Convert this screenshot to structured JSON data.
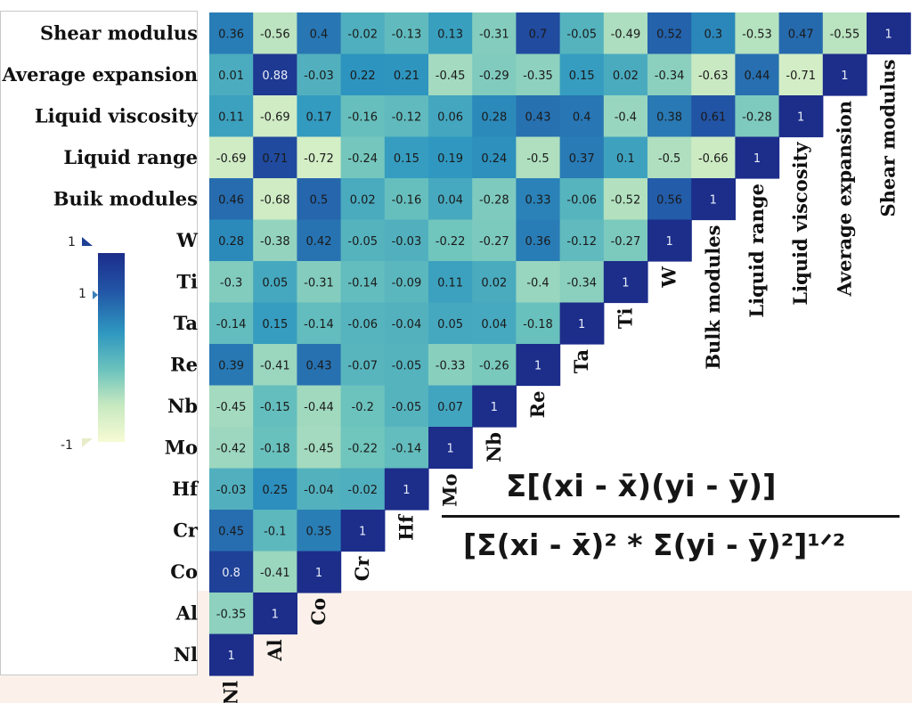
{
  "chart_data": {
    "type": "heatmap",
    "title": "",
    "row_labels": [
      "Shear modulus",
      "Average expansion",
      "Liquid viscosity",
      "Liquid range",
      "Buik modules",
      "W",
      "Ti",
      "Ta",
      "Re",
      "Nb",
      "Mo",
      "Hf",
      "Cr",
      "Co",
      "Al",
      "Nl"
    ],
    "column_labels": [
      "Nl",
      "Al",
      "Co",
      "Cr",
      "Hf",
      "Mo",
      "Nb",
      "Re",
      "Ta",
      "Ti",
      "W",
      "Bulk modules",
      "Liquid range",
      "Liquid viscosity",
      "Average expansion",
      "Shear modulus"
    ],
    "values": [
      [
        "0.36",
        "-0.56",
        "0.4",
        "-0.02",
        "-0.13",
        "0.13",
        "-0.31",
        "0.7",
        "-0.05",
        "-0.49",
        "0.52",
        "0.3",
        "-0.53",
        "0.47",
        "-0.55",
        "1"
      ],
      [
        "0.01",
        "0.88",
        "-0.03",
        "0.22",
        "0.21",
        "-0.45",
        "-0.29",
        "-0.35",
        "0.15",
        "0.02",
        "-0.34",
        "-0.63",
        "0.44",
        "-0.71",
        "1"
      ],
      [
        "0.11",
        "-0.69",
        "0.17",
        "-0.16",
        "-0.12",
        "0.06",
        "0.28",
        "0.43",
        "0.4",
        "-0.4",
        "0.38",
        "0.61",
        "-0.28",
        "1"
      ],
      [
        "-0.69",
        "0.71",
        "-0.72",
        "-0.24",
        "0.15",
        "0.19",
        "0.24",
        "-0.5",
        "0.37",
        "0.1",
        "-0.5",
        "-0.66",
        "1"
      ],
      [
        "0.46",
        "-0.68",
        "0.5",
        "0.02",
        "-0.16",
        "0.04",
        "-0.28",
        "0.33",
        "-0.06",
        "-0.52",
        "0.56",
        "1"
      ],
      [
        "0.28",
        "-0.38",
        "0.42",
        "-0.05",
        "-0.03",
        "-0.22",
        "-0.27",
        "0.36",
        "-0.12",
        "-0.27",
        "1"
      ],
      [
        "-0.3",
        "0.05",
        "-0.31",
        "-0.14",
        "-0.09",
        "0.11",
        "0.02",
        "-0.4",
        "-0.34",
        "1"
      ],
      [
        "-0.14",
        "0.15",
        "-0.14",
        "-0.06",
        "-0.04",
        "0.05",
        "0.04",
        "-0.18",
        "1"
      ],
      [
        "0.39",
        "-0.41",
        "0.43",
        "-0.07",
        "-0.05",
        "-0.33",
        "-0.26",
        "1"
      ],
      [
        "-0.45",
        "-0.15",
        "-0.44",
        "-0.2",
        "-0.05",
        "0.07",
        "1"
      ],
      [
        "-0.42",
        "-0.18",
        "-0.45",
        "-0.22",
        "-0.14",
        "1"
      ],
      [
        "-0.03",
        "0.25",
        "-0.04",
        "-0.02",
        "1"
      ],
      [
        "0.45",
        "-0.1",
        "0.35",
        "1"
      ],
      [
        "0.8",
        "-0.41",
        "1"
      ],
      [
        "-0.35",
        "1"
      ],
      [
        "1"
      ]
    ],
    "colorbar": {
      "ticks": [
        "1",
        "1",
        "-1"
      ],
      "range": [
        -1,
        1
      ]
    },
    "colorscale": [
      "#f7fbd4",
      "#c5e8c0",
      "#6cc3bd",
      "#2e97c0",
      "#2255a6",
      "#1c2d8a"
    ]
  },
  "formula": {
    "numerator": "Σ[(xi - x̄)(yi - ȳ)]",
    "denominator": "[Σ(xi - x̄)² * Σ(yi - ȳ)²]¹ᐟ²"
  }
}
